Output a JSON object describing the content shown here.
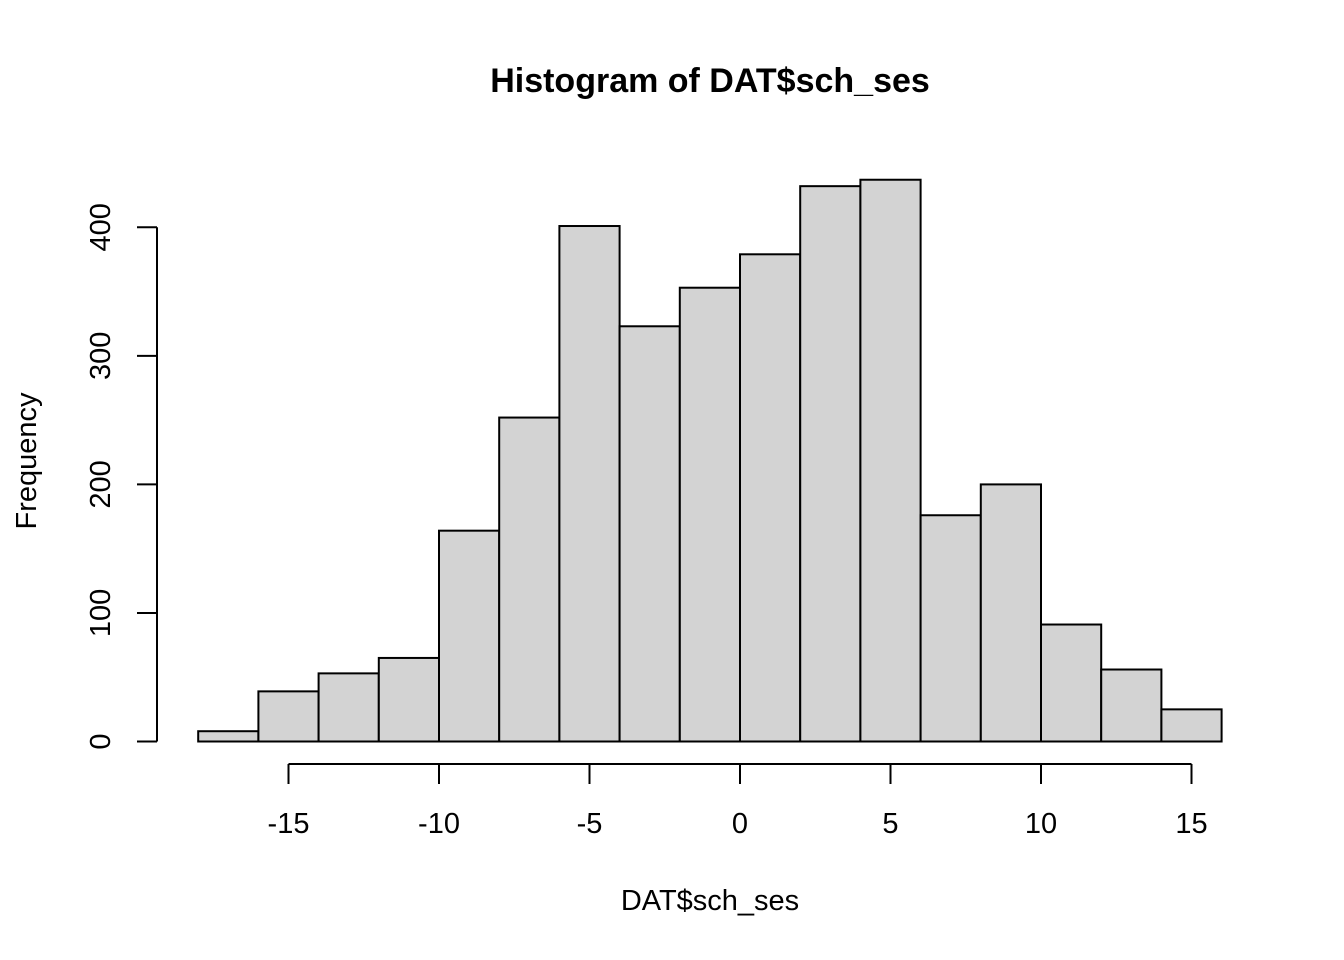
{
  "chart_data": {
    "type": "bar",
    "title": "Histogram of DAT$sch_ses",
    "xlabel": "DAT$sch_ses",
    "ylabel": "Frequency",
    "bins": [
      {
        "from": -18,
        "to": -16,
        "count": 8
      },
      {
        "from": -16,
        "to": -14,
        "count": 39
      },
      {
        "from": -14,
        "to": -12,
        "count": 53
      },
      {
        "from": -12,
        "to": -10,
        "count": 65
      },
      {
        "from": -10,
        "to": -8,
        "count": 164
      },
      {
        "from": -8,
        "to": -6,
        "count": 252
      },
      {
        "from": -6,
        "to": -4,
        "count": 401
      },
      {
        "from": -4,
        "to": -2,
        "count": 323
      },
      {
        "from": -2,
        "to": 0,
        "count": 353
      },
      {
        "from": 0,
        "to": 2,
        "count": 379
      },
      {
        "from": 2,
        "to": 4,
        "count": 432
      },
      {
        "from": 4,
        "to": 6,
        "count": 437
      },
      {
        "from": 6,
        "to": 8,
        "count": 176
      },
      {
        "from": 8,
        "to": 10,
        "count": 200
      },
      {
        "from": 10,
        "to": 12,
        "count": 91
      },
      {
        "from": 12,
        "to": 14,
        "count": 56
      },
      {
        "from": 14,
        "to": 16,
        "count": 25
      }
    ],
    "xticks": [
      -15,
      -10,
      -5,
      0,
      5,
      10,
      15
    ],
    "xtick_labels": [
      "-15",
      "-10",
      "-5",
      "0",
      "5",
      "10",
      "15"
    ],
    "yticks": [
      0,
      100,
      200,
      300,
      400
    ],
    "ytick_labels": [
      "0",
      "100",
      "200",
      "300",
      "400"
    ],
    "xlim": [
      -18,
      16
    ],
    "ylim": [
      0,
      437
    ],
    "grid": false,
    "legend": "none",
    "bar_fill": "#d3d3d3",
    "bar_stroke": "#000000"
  }
}
